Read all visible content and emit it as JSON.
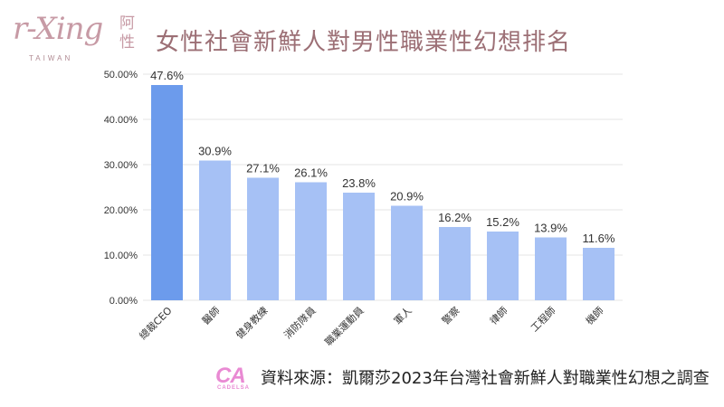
{
  "branding": {
    "script": "r-Xing",
    "chinese": "阿性",
    "region": "TAIWAN",
    "sponsor_mark": "CA",
    "sponsor_name": "CADELSA"
  },
  "header": {
    "title": "女性社會新鮮人對男性職業性幻想排名"
  },
  "footer": {
    "source": "資料來源：凱爾莎2023年台灣社會新鮮人對職業性幻想之調查"
  },
  "colors": {
    "bar_highlight": "#6c9bec",
    "bar": "#a6c1f5",
    "title": "#9c6f75",
    "grid": "#e4e4e4",
    "logo": "#c79aa5",
    "sponsor": "#e98ad3"
  },
  "chart_data": {
    "type": "bar",
    "categories": [
      "總裁CEO",
      "醫師",
      "健身教練",
      "消防隊員",
      "職業運動員",
      "軍人",
      "警察",
      "律師",
      "工程師",
      "機師"
    ],
    "values": [
      47.6,
      30.9,
      27.1,
      26.1,
      23.8,
      20.9,
      16.2,
      15.2,
      13.9,
      11.6
    ],
    "data_labels": [
      "47.6%",
      "30.9%",
      "27.1%",
      "26.1%",
      "23.8%",
      "20.9%",
      "16.2%",
      "15.2%",
      "13.9%",
      "11.6%"
    ],
    "y_ticks": [
      0,
      10,
      20,
      30,
      40,
      50
    ],
    "y_tick_labels": [
      "0.00%",
      "10.00%",
      "20.00%",
      "30.00%",
      "40.00%",
      "50.00%"
    ],
    "ylim": [
      0,
      50
    ],
    "title": "",
    "xlabel": "",
    "ylabel": "",
    "grid": true,
    "highlight_index": 0
  }
}
